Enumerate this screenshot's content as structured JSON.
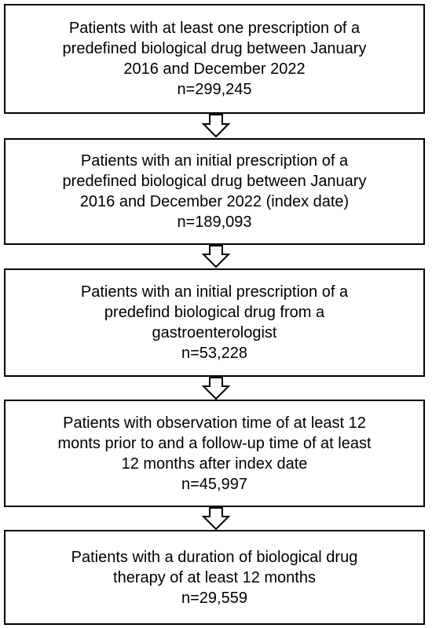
{
  "nodes": [
    {
      "lines": [
        "Patients with at least one prescription of a",
        "predefined biological drug between January",
        "2016 and December 2022"
      ],
      "count": "n=299,245"
    },
    {
      "lines": [
        "Patients with an initial prescription of a",
        "predefined biological drug between January",
        "2016 and December 2022 (index date)"
      ],
      "count": "n=189,093"
    },
    {
      "lines": [
        "Patients with an initial prescription of a",
        "predefind biological drug from a",
        "gastroenterologist"
      ],
      "count": "n=53,228"
    },
    {
      "lines": [
        "Patients with observation time of at least 12",
        "monts prior to and a follow-up time of at least",
        "12 months after index date"
      ],
      "count": "n=45,997"
    },
    {
      "lines": [
        "Patients with a duration of biological drug",
        "therapy of at least 12 months"
      ],
      "count": "n=29,559"
    }
  ]
}
